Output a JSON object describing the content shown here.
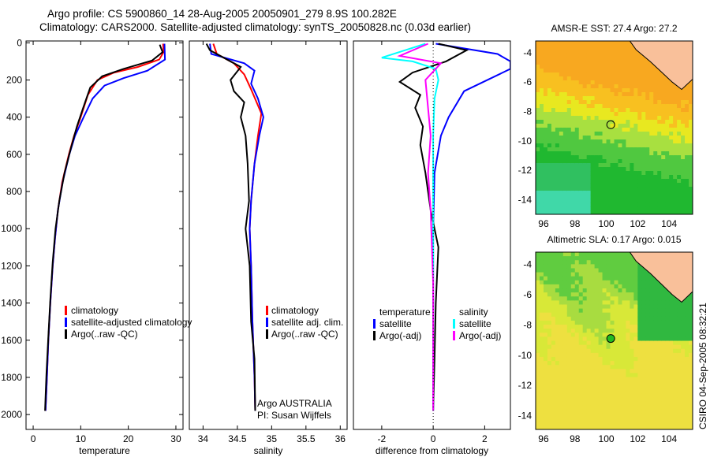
{
  "title": {
    "line1": "Argo profile: CS 5900860_14 28-Aug-2005 20050901_279 8.9S 100.282E",
    "line2": "Climatology: CARS2000. Satellite-adjusted climatology: synTS_20050828.nc (0.03d earlier)"
  },
  "side_label": "CSIRO 04-Sep-2005 08:32:21",
  "colors": {
    "clim": "#ff0000",
    "sat": "#0000ff",
    "argo": "#000000",
    "sal_sat": "#00ffff",
    "sal_argo": "#ff00ff"
  },
  "chart_data": [
    {
      "type": "line",
      "id": "temp",
      "xlabel": "temperature",
      "ylabel": "",
      "xlim": [
        -1.5,
        31.5
      ],
      "ylim": [
        2080,
        -10
      ],
      "xticks": [
        "0",
        "10",
        "20",
        "30"
      ],
      "xtick_values": [
        0,
        10,
        20,
        30
      ],
      "yticks": [
        "0",
        "200",
        "400",
        "600",
        "800",
        "1000",
        "1200",
        "1400",
        "1600",
        "1800",
        "2000"
      ],
      "ytick_values": [
        0,
        200,
        400,
        600,
        800,
        1000,
        1200,
        1400,
        1600,
        1800,
        2000
      ],
      "legend": [
        "climatology",
        "satellite-adjusted climatology",
        "Argo(..raw -QC)"
      ],
      "series": [
        {
          "name": "climatology",
          "color": "clim",
          "points": [
            [
              27.3,
              5
            ],
            [
              27.4,
              50
            ],
            [
              26.5,
              90
            ],
            [
              22,
              130
            ],
            [
              17,
              160
            ],
            [
              13.5,
              200
            ],
            [
              11.5,
              280
            ],
            [
              10,
              400
            ],
            [
              8.6,
              500
            ],
            [
              7.5,
              600
            ],
            [
              6.1,
              750
            ],
            [
              5.2,
              900
            ],
            [
              4.6,
              1050
            ],
            [
              4.1,
              1200
            ],
            [
              3.6,
              1400
            ],
            [
              3.2,
              1600
            ],
            [
              2.9,
              1800
            ],
            [
              2.6,
              1980
            ]
          ]
        },
        {
          "name": "satellite-adjusted climatology",
          "color": "sat",
          "points": [
            [
              27.6,
              5
            ],
            [
              27.7,
              90
            ],
            [
              24,
              150
            ],
            [
              19,
              190
            ],
            [
              15,
              230
            ],
            [
              12.5,
              300
            ],
            [
              10.6,
              400
            ],
            [
              8.8,
              500
            ],
            [
              7.6,
              600
            ],
            [
              6.2,
              750
            ],
            [
              5.2,
              900
            ],
            [
              4.6,
              1050
            ],
            [
              4.1,
              1200
            ],
            [
              3.6,
              1400
            ],
            [
              3.2,
              1600
            ],
            [
              2.9,
              1800
            ],
            [
              2.6,
              1980
            ]
          ]
        },
        {
          "name": "Argo",
          "color": "argo",
          "points": [
            [
              26.6,
              10
            ],
            [
              27.2,
              50
            ],
            [
              25,
              95
            ],
            [
              19,
              140
            ],
            [
              14.5,
              180
            ],
            [
              12,
              240
            ],
            [
              10.5,
              350
            ],
            [
              9.2,
              450
            ],
            [
              8,
              560
            ],
            [
              6.6,
              700
            ],
            [
              5.5,
              850
            ],
            [
              4.7,
              1000
            ],
            [
              4.1,
              1180
            ],
            [
              3.6,
              1380
            ],
            [
              3.2,
              1580
            ],
            [
              2.8,
              1780
            ],
            [
              2.5,
              1980
            ]
          ]
        }
      ]
    },
    {
      "type": "line",
      "id": "sal",
      "xlabel": "salinity",
      "xlim": [
        33.8,
        36.1
      ],
      "ylim": [
        2080,
        -10
      ],
      "xticks": [
        "34",
        "34.5",
        "35",
        "35.5",
        "36"
      ],
      "xtick_values": [
        34,
        34.5,
        35,
        35.5,
        36
      ],
      "legend": [
        "climatology",
        "satellite adj. clim.",
        "Argo(..raw -QC)"
      ],
      "annotation": [
        "Argo AUSTRALIA",
        "PI: Susan Wijffels"
      ],
      "series": [
        {
          "name": "climatology",
          "color": "clim",
          "points": [
            [
              34.15,
              5
            ],
            [
              34.2,
              60
            ],
            [
              34.45,
              110
            ],
            [
              34.6,
              170
            ],
            [
              34.7,
              250
            ],
            [
              34.85,
              380
            ],
            [
              34.8,
              500
            ],
            [
              34.75,
              650
            ],
            [
              34.7,
              850
            ],
            [
              34.68,
              1000
            ],
            [
              34.7,
              1200
            ],
            [
              34.72,
              1500
            ],
            [
              34.75,
              1800
            ],
            [
              34.76,
              1980
            ]
          ]
        },
        {
          "name": "satellite adj. clim.",
          "color": "sat",
          "points": [
            [
              34.1,
              5
            ],
            [
              34.12,
              60
            ],
            [
              34.6,
              110
            ],
            [
              34.75,
              150
            ],
            [
              34.7,
              220
            ],
            [
              34.8,
              300
            ],
            [
              34.88,
              400
            ],
            [
              34.82,
              500
            ],
            [
              34.75,
              650
            ],
            [
              34.7,
              850
            ],
            [
              34.68,
              1000
            ],
            [
              34.7,
              1200
            ],
            [
              34.72,
              1500
            ],
            [
              34.75,
              1800
            ],
            [
              34.76,
              1980
            ]
          ]
        },
        {
          "name": "Argo",
          "color": "argo",
          "points": [
            [
              34.05,
              5
            ],
            [
              34.1,
              40
            ],
            [
              34.55,
              130
            ],
            [
              34.4,
              200
            ],
            [
              34.45,
              260
            ],
            [
              34.6,
              320
            ],
            [
              34.55,
              400
            ],
            [
              34.62,
              500
            ],
            [
              34.65,
              650
            ],
            [
              34.67,
              850
            ],
            [
              34.62,
              1000
            ],
            [
              34.68,
              1200
            ],
            [
              34.7,
              1500
            ],
            [
              34.75,
              1700
            ],
            [
              34.76,
              1980
            ]
          ]
        }
      ]
    },
    {
      "type": "line",
      "id": "diff",
      "xlabel": "difference from climatology",
      "xlim": [
        -3.1,
        3
      ],
      "ylim": [
        2080,
        -10
      ],
      "xticks": [
        "-2",
        "0",
        "2"
      ],
      "xtick_values": [
        -2,
        0,
        2
      ],
      "legend_headers": [
        "temperature",
        "salinity"
      ],
      "legend": [
        "satellite",
        "Argo(-adj)",
        "satellite",
        "Argo(-adj)"
      ],
      "series": [
        {
          "name": "temperature satellite",
          "color": "sat",
          "points": [
            [
              0.1,
              5
            ],
            [
              2.5,
              60
            ],
            [
              3,
              100
            ],
            [
              3,
              140
            ],
            [
              1.2,
              260
            ],
            [
              0.6,
              400
            ],
            [
              0.3,
              500
            ],
            [
              0.05,
              700
            ],
            [
              0,
              1000
            ],
            [
              0,
              1980
            ]
          ]
        },
        {
          "name": "temperature Argo(-adj)",
          "color": "argo",
          "points": [
            [
              0.2,
              5
            ],
            [
              1.3,
              40
            ],
            [
              0.5,
              100
            ],
            [
              -0.8,
              160
            ],
            [
              -1.3,
              210
            ],
            [
              -0.5,
              280
            ],
            [
              -0.7,
              350
            ],
            [
              -0.4,
              450
            ],
            [
              -0.5,
              550
            ],
            [
              -0.3,
              700
            ],
            [
              -0.1,
              900
            ],
            [
              0.2,
              1100
            ],
            [
              0.1,
              1400
            ],
            [
              0.05,
              1700
            ],
            [
              0,
              1980
            ]
          ]
        },
        {
          "name": "salinity satellite",
          "color": "sal_sat",
          "points": [
            [
              -0.3,
              5
            ],
            [
              -2,
              80
            ],
            [
              -0.8,
              100
            ],
            [
              0.1,
              140
            ],
            [
              0.2,
              200
            ],
            [
              0.05,
              300
            ],
            [
              0,
              500
            ],
            [
              0,
              1980
            ]
          ]
        },
        {
          "name": "salinity Argo(-adj)",
          "color": "sal_argo",
          "points": [
            [
              -0.2,
              5
            ],
            [
              -1.3,
              70
            ],
            [
              0.3,
              110
            ],
            [
              -0.3,
              200
            ],
            [
              -0.2,
              350
            ],
            [
              -0.1,
              500
            ],
            [
              -0.2,
              700
            ],
            [
              -0.1,
              900
            ],
            [
              0,
              1300
            ],
            [
              0,
              1980
            ]
          ]
        }
      ]
    },
    {
      "type": "heatmap",
      "id": "sst",
      "title": "AMSR-E SST: 27.4 Argo: 27.2",
      "xlim": [
        95.5,
        105.5
      ],
      "ylim": [
        -15,
        -3.2
      ],
      "xticks": [
        "96",
        "98",
        "100",
        "102",
        "104"
      ],
      "xtick_values": [
        96,
        98,
        100,
        102,
        104
      ],
      "yticks": [
        "-4",
        "-6",
        "-8",
        "-10",
        "-12",
        "-14"
      ],
      "ytick_values": [
        -4,
        -6,
        -8,
        -10,
        -12,
        -14
      ],
      "argo_position": [
        100.282,
        -8.9
      ]
    },
    {
      "type": "heatmap",
      "id": "sla",
      "title": "Altimetric SLA: 0.17 Argo: 0.015",
      "xlim": [
        95.5,
        105.5
      ],
      "ylim": [
        -14.9,
        -3.2
      ],
      "xticks": [
        "96",
        "98",
        "100",
        "102",
        "104"
      ],
      "xtick_values": [
        96,
        98,
        100,
        102,
        104
      ],
      "yticks": [
        "-4",
        "-6",
        "-8",
        "-10",
        "-12",
        "-14"
      ],
      "ytick_values": [
        -4,
        -6,
        -8,
        -10,
        -12,
        -14
      ],
      "argo_position": [
        100.282,
        -8.9
      ]
    }
  ]
}
